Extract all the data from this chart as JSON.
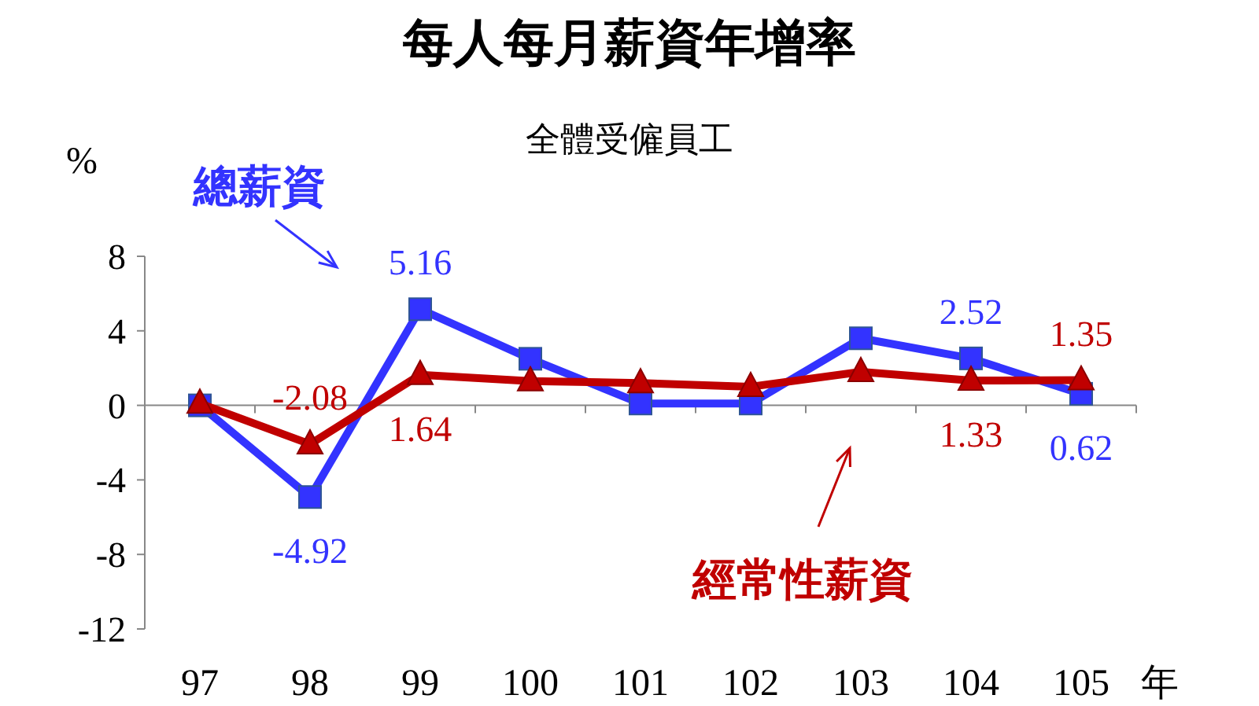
{
  "chart_data": {
    "type": "line",
    "title": "每人每月薪資年增率",
    "subtitle": "全體受僱員工",
    "ylabel": "%",
    "xlabel": "年",
    "categories": [
      "97",
      "98",
      "99",
      "100",
      "101",
      "102",
      "103",
      "104",
      "105"
    ],
    "series": [
      {
        "name": "總薪資",
        "color": "#3333ff",
        "marker": "square",
        "values": [
          0.0,
          -4.92,
          5.16,
          2.5,
          0.1,
          0.1,
          3.6,
          2.52,
          0.62
        ],
        "value_labels": [
          null,
          "-4.92",
          "5.16",
          null,
          null,
          null,
          null,
          "2.52",
          "0.62"
        ]
      },
      {
        "name": "經常性薪資",
        "color": "#c00000",
        "marker": "triangle",
        "values": [
          0.1,
          -2.08,
          1.64,
          1.3,
          1.2,
          1.0,
          1.8,
          1.33,
          1.35
        ],
        "value_labels": [
          null,
          "-2.08",
          "1.64",
          null,
          null,
          null,
          null,
          "1.33",
          "1.35"
        ]
      }
    ],
    "ylim": [
      -12,
      8
    ],
    "yticks": [
      -12,
      -8,
      -4,
      0,
      4,
      8
    ],
    "line_style": "solid"
  }
}
